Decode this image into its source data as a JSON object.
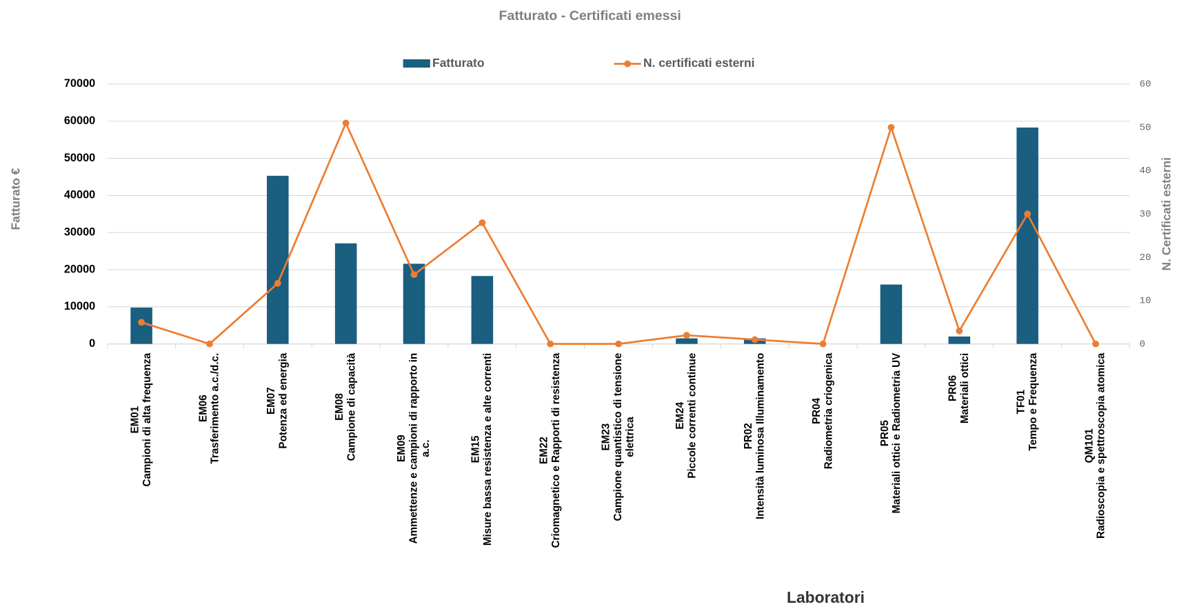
{
  "chart_data": {
    "type": "bar_line",
    "title": "Fatturato  -  Certificati  emessi",
    "y_label": "Fatturato  €",
    "y2_label": "N. Certificati esterni",
    "x_label": "Laboratori",
    "categories": [
      [
        "EM01",
        "Campioni di alta frequenza"
      ],
      [
        "EM06",
        "Trasferimento a.c./d.c."
      ],
      [
        "EM07",
        "Potenza ed energia"
      ],
      [
        "EM08",
        "Campione di capacità"
      ],
      [
        "EM09",
        "Ammettenze e campioni di rapporto in",
        "a.c."
      ],
      [
        "EM15",
        "Misure bassa resistenza e alte correnti"
      ],
      [
        "EM22",
        "Criomagnetico e Rapporti di resistenza"
      ],
      [
        "EM23",
        "Campione quantistico di tensione",
        "elettrica"
      ],
      [
        "EM24",
        "Piccole correnti continue"
      ],
      [
        "PR02",
        "Intensità luminosa Illuminamento"
      ],
      [
        "PR04",
        "Radiometria criogenica"
      ],
      [
        "PR05",
        "Materiali ottici e Radiometria UV"
      ],
      [
        "PR06",
        "Materiali ottici"
      ],
      [
        "TF01",
        "Tempo e Frequenza"
      ],
      [
        "QM101",
        "Radioscopia e spettroscopia atomica"
      ]
    ],
    "series": [
      {
        "name": "Fatturato",
        "color": "#1a5e80",
        "type": "bar",
        "values": [
          9800,
          0,
          45300,
          27100,
          21600,
          18300,
          0,
          0,
          1500,
          1500,
          0,
          16000,
          2000,
          58300,
          0
        ]
      },
      {
        "name": "N. certificati esterni",
        "color": "#ed7d31",
        "type": "line",
        "axis": "y2",
        "values": [
          5,
          0,
          14,
          51,
          16,
          28,
          0,
          0,
          2,
          1,
          0,
          50,
          3,
          30,
          0
        ]
      }
    ],
    "ylim": [
      0,
      70000
    ],
    "yticks": [
      0,
      10000,
      20000,
      30000,
      40000,
      50000,
      60000,
      70000
    ],
    "y2lim": [
      0,
      60
    ],
    "y2ticks": [
      0,
      10,
      20,
      30,
      40,
      50,
      60
    ],
    "grid": true
  }
}
